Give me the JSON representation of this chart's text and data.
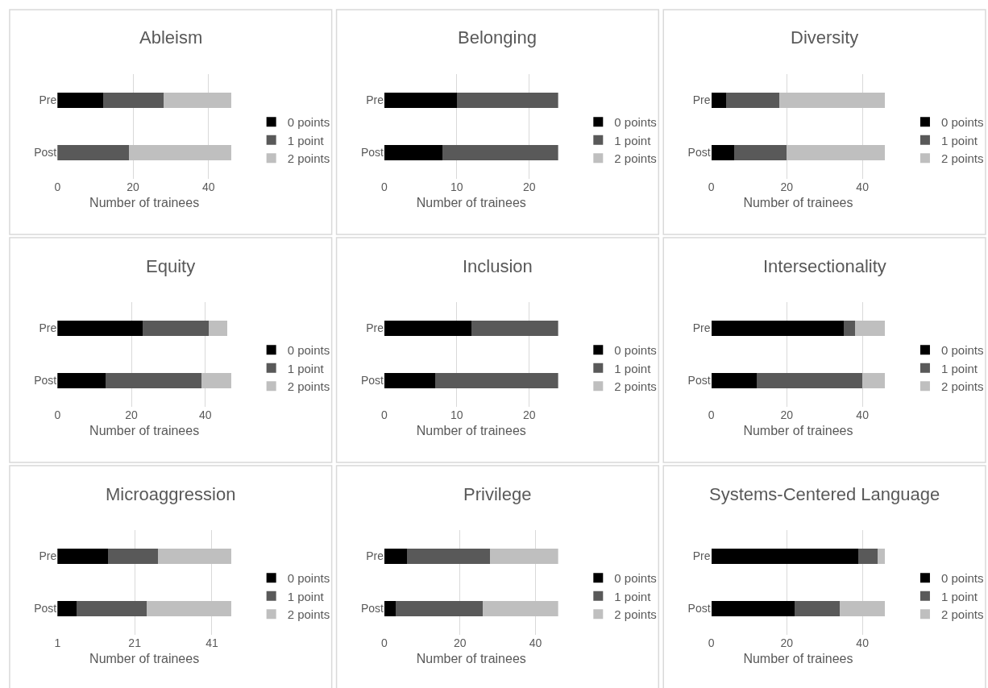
{
  "chart_data": [
    {
      "type": "bar",
      "orientation": "horizontal",
      "stacked": true,
      "title": "Ableism",
      "xlabel": "Number of trainees",
      "categories": [
        "Pre",
        "Post"
      ],
      "xlim": [
        0,
        46
      ],
      "xticks": [
        0,
        20,
        40
      ],
      "grid": "x",
      "legend": "right",
      "series": [
        {
          "name": "0 points",
          "color": "#000000",
          "values": [
            12,
            0
          ]
        },
        {
          "name": "1 point",
          "color": "#595959",
          "values": [
            16,
            19
          ]
        },
        {
          "name": "2 points",
          "color": "#bfbfbf",
          "values": [
            18,
            27
          ]
        }
      ]
    },
    {
      "type": "bar",
      "orientation": "horizontal",
      "stacked": true,
      "title": "Belonging",
      "xlabel": "Number of trainees",
      "categories": [
        "Pre",
        "Post"
      ],
      "xlim": [
        0,
        24
      ],
      "xticks": [
        0,
        10,
        20
      ],
      "grid": "x",
      "legend": "right",
      "series": [
        {
          "name": "0 points",
          "color": "#000000",
          "values": [
            10,
            8
          ]
        },
        {
          "name": "1 point",
          "color": "#595959",
          "values": [
            14,
            16
          ]
        },
        {
          "name": "2 points",
          "color": "#bfbfbf",
          "values": [
            0,
            0
          ]
        }
      ]
    },
    {
      "type": "bar",
      "orientation": "horizontal",
      "stacked": true,
      "title": "Diversity",
      "xlabel": "Number of trainees",
      "categories": [
        "Pre",
        "Post"
      ],
      "xlim": [
        0,
        46
      ],
      "xticks": [
        0,
        20,
        40
      ],
      "grid": "x",
      "legend": "right",
      "series": [
        {
          "name": "0 points",
          "color": "#000000",
          "values": [
            4,
            6
          ]
        },
        {
          "name": "1 point",
          "color": "#595959",
          "values": [
            14,
            14
          ]
        },
        {
          "name": "2 points",
          "color": "#bfbfbf",
          "values": [
            28,
            26
          ]
        }
      ]
    },
    {
      "type": "bar",
      "orientation": "horizontal",
      "stacked": true,
      "title": "Equity",
      "xlabel": "Number of trainees",
      "categories": [
        "Pre",
        "Post"
      ],
      "xlim": [
        0,
        47
      ],
      "xticks": [
        0,
        20,
        40
      ],
      "grid": "x",
      "legend": "right",
      "series": [
        {
          "name": "0 points",
          "color": "#000000",
          "values": [
            23,
            13
          ]
        },
        {
          "name": "1 point",
          "color": "#595959",
          "values": [
            18,
            26
          ]
        },
        {
          "name": "2 points",
          "color": "#bfbfbf",
          "values": [
            5,
            8
          ]
        }
      ]
    },
    {
      "type": "bar",
      "orientation": "horizontal",
      "stacked": true,
      "title": "Inclusion",
      "xlabel": "Number of trainees",
      "categories": [
        "Pre",
        "Post"
      ],
      "xlim": [
        0,
        24
      ],
      "xticks": [
        0,
        10,
        20
      ],
      "grid": "x",
      "legend": "right",
      "series": [
        {
          "name": "0 points",
          "color": "#000000",
          "values": [
            12,
            7
          ]
        },
        {
          "name": "1 point",
          "color": "#595959",
          "values": [
            12,
            17
          ]
        },
        {
          "name": "2 points",
          "color": "#bfbfbf",
          "values": [
            0,
            0
          ]
        }
      ]
    },
    {
      "type": "bar",
      "orientation": "horizontal",
      "stacked": true,
      "title": "Intersectionality",
      "xlabel": "Number of trainees",
      "categories": [
        "Pre",
        "Post"
      ],
      "xlim": [
        0,
        46
      ],
      "xticks": [
        0,
        20,
        40
      ],
      "grid": "x",
      "legend": "right",
      "series": [
        {
          "name": "0 points",
          "color": "#000000",
          "values": [
            35,
            12
          ]
        },
        {
          "name": "1 point",
          "color": "#595959",
          "values": [
            3,
            28
          ]
        },
        {
          "name": "2 points",
          "color": "#bfbfbf",
          "values": [
            8,
            6
          ]
        }
      ]
    },
    {
      "type": "bar",
      "orientation": "horizontal",
      "stacked": true,
      "title": "Microaggression",
      "xlabel": "Number of trainees",
      "categories": [
        "Pre",
        "Post"
      ],
      "xlim": [
        1,
        46
      ],
      "xticks": [
        1,
        21,
        41
      ],
      "grid": "x",
      "legend": "right",
      "series": [
        {
          "name": "0 points",
          "color": "#000000",
          "values": [
            14,
            6
          ]
        },
        {
          "name": "1 point",
          "color": "#595959",
          "values": [
            13,
            18
          ]
        },
        {
          "name": "2 points",
          "color": "#bfbfbf",
          "values": [
            19,
            22
          ]
        }
      ]
    },
    {
      "type": "bar",
      "orientation": "horizontal",
      "stacked": true,
      "title": "Privilege",
      "xlabel": "Number of trainees",
      "categories": [
        "Pre",
        "Post"
      ],
      "xlim": [
        0,
        46
      ],
      "xticks": [
        0,
        20,
        40
      ],
      "grid": "x",
      "legend": "right",
      "series": [
        {
          "name": "0 points",
          "color": "#000000",
          "values": [
            6,
            3
          ]
        },
        {
          "name": "1 point",
          "color": "#595959",
          "values": [
            22,
            23
          ]
        },
        {
          "name": "2 points",
          "color": "#bfbfbf",
          "values": [
            18,
            20
          ]
        }
      ]
    },
    {
      "type": "bar",
      "orientation": "horizontal",
      "stacked": true,
      "title": "Systems-Centered Language",
      "xlabel": "Number of trainees",
      "categories": [
        "Pre",
        "Post"
      ],
      "xlim": [
        0,
        46
      ],
      "xticks": [
        0,
        20,
        40
      ],
      "grid": "x",
      "legend": "right",
      "series": [
        {
          "name": "0 points",
          "color": "#000000",
          "values": [
            39,
            22
          ]
        },
        {
          "name": "1 point",
          "color": "#595959",
          "values": [
            5,
            12
          ]
        },
        {
          "name": "2 points",
          "color": "#bfbfbf",
          "values": [
            2,
            12
          ]
        }
      ]
    }
  ]
}
